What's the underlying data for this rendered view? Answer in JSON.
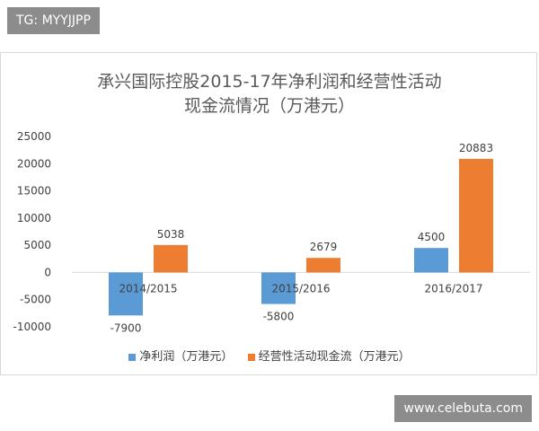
{
  "watermarks": {
    "tag": "TG: MYYJJPP",
    "url": "www.celebuta.com"
  },
  "colors": {
    "series1": "#5b9bd5",
    "series2": "#ed7d31",
    "axis_text": "#404040",
    "grid": "#d9d9d9"
  },
  "chart_data": {
    "type": "bar",
    "title_line1": "承兴国际控股2015-17年净利润和经营性活动",
    "title_line2": "现金流情况（万港元）",
    "categories": [
      "2014/2015",
      "2015/2016",
      "2016/2017"
    ],
    "series": [
      {
        "name": "净利润（万港元）",
        "values": [
          -7900,
          -5800,
          4500
        ]
      },
      {
        "name": "经营性活动现金流（万港元）",
        "values": [
          5038,
          2679,
          20883
        ]
      }
    ],
    "ylim": [
      -10000,
      25000
    ],
    "yticks": [
      -10000,
      -5000,
      0,
      5000,
      10000,
      15000,
      20000,
      25000
    ],
    "data_labels": [
      [
        "-7900",
        "-5800",
        "4500"
      ],
      [
        "5038",
        "2679",
        "20883"
      ]
    ],
    "legend_position": "bottom",
    "grid": false
  }
}
